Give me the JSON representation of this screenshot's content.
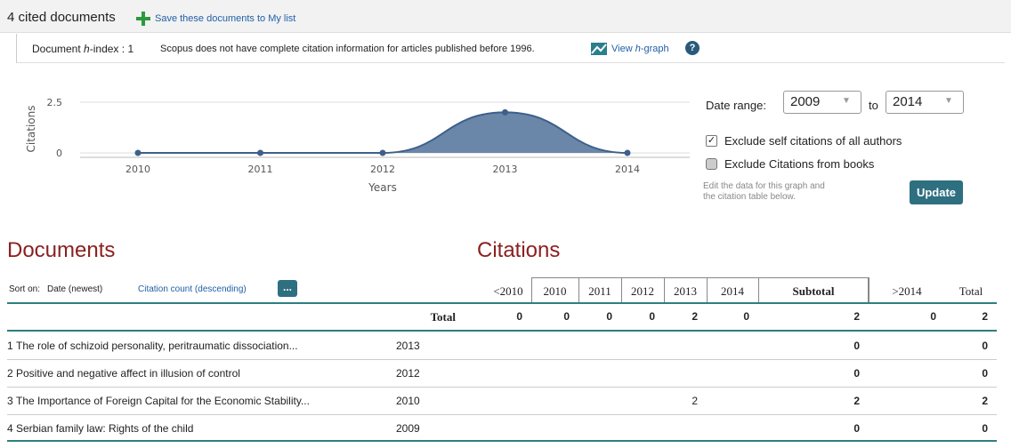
{
  "header": {
    "count_text": "4 cited documents",
    "save_link": "Save these documents to My list",
    "hindex_prefix": "Document",
    "hindex_italic": "h",
    "hindex_suffix": "-index :",
    "hindex_value": 1,
    "note": "Scopus does not have complete citation information for articles published before 1996.",
    "view_prefix": "View",
    "view_italic": "h",
    "view_suffix": "-graph"
  },
  "chart_data": {
    "type": "area",
    "categories": [
      "2010",
      "2011",
      "2012",
      "2013",
      "2014"
    ],
    "values": [
      0,
      0,
      0,
      2,
      0
    ],
    "color": "#6a86a8",
    "line_color": "#3d5f8a",
    "xlabel": "Years",
    "ylabel": "Citations",
    "ylim": [
      0,
      2.5
    ],
    "yticks": [
      0,
      2.5
    ],
    "grid": true
  },
  "controls": {
    "date_range_label": "Date range:",
    "from": "2009",
    "to_label": "to",
    "to": "2014",
    "checkboxes": [
      {
        "label": "Exclude self citations of all authors",
        "checked": true
      },
      {
        "label": "Exclude Citations from books",
        "checked": false
      }
    ],
    "edit_note_1": "Edit the data for this graph and",
    "edit_note_2": "the citation table below.",
    "update": "Update"
  },
  "headings": {
    "documents": "Documents",
    "citations": "Citations"
  },
  "sort": {
    "label": "Sort on:",
    "date": "Date (newest)",
    "count": "Citation count (descending)",
    "more": "..."
  },
  "table": {
    "columns": [
      "<2010",
      "2010",
      "2011",
      "2012",
      "2013",
      "2014",
      "Subtotal",
      ">2014",
      "Total"
    ],
    "totals_label": "Total",
    "totals": [
      0,
      0,
      0,
      0,
      2,
      0,
      2,
      0,
      2
    ],
    "rows": [
      {
        "rank": 1,
        "title": "The role of schizoid personality, peritraumatic dissociation...",
        "year": 2013,
        "cells": [
          null,
          null,
          null,
          null,
          null,
          null,
          0,
          null,
          0
        ]
      },
      {
        "rank": 2,
        "title": "Positive and negative affect in illusion of control",
        "year": 2012,
        "cells": [
          null,
          null,
          null,
          null,
          null,
          null,
          0,
          null,
          0
        ]
      },
      {
        "rank": 3,
        "title": "The Importance of Foreign Capital for the Economic Stability...",
        "year": 2010,
        "cells": [
          null,
          null,
          null,
          null,
          2,
          null,
          2,
          null,
          2
        ]
      },
      {
        "rank": 4,
        "title": "Serbian family law: Rights of the child",
        "year": 2009,
        "cells": [
          null,
          null,
          null,
          null,
          null,
          null,
          0,
          null,
          0
        ]
      }
    ]
  }
}
